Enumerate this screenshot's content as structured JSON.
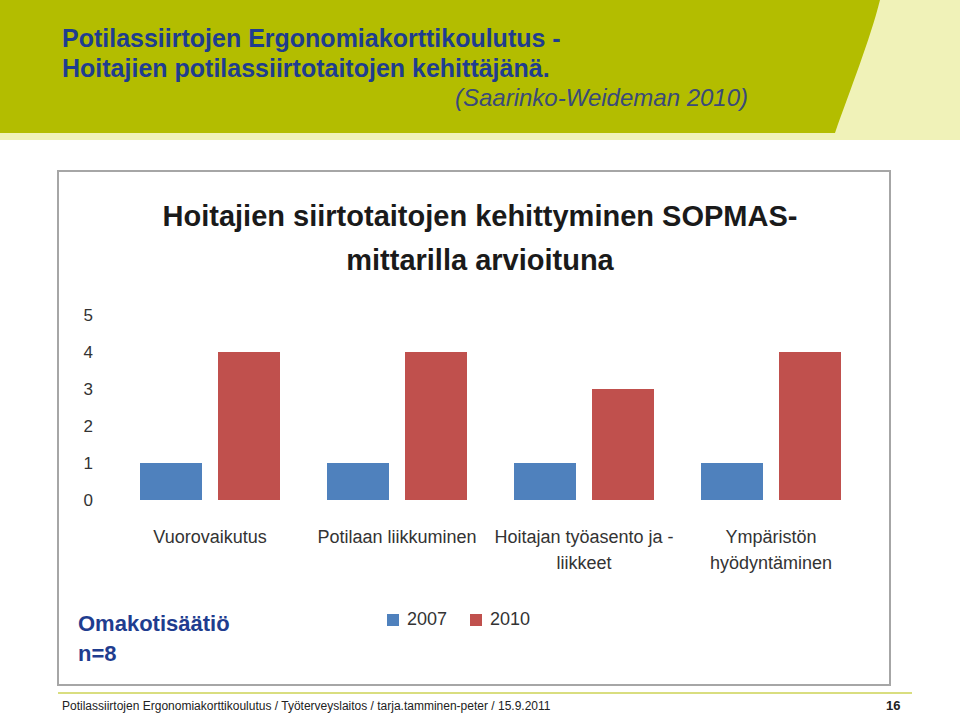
{
  "slide": {
    "title_lines": [
      "Potilassiirtojen Ergonomiakorttikoulutus -",
      "Hoitajien potilassiirtotaitojen kehittäjänä."
    ],
    "citation": "(Saarinko-Weideman 2010)",
    "note_lines": [
      "Omakotisäätiö",
      "n=8"
    ],
    "footer": "Potilassiirtojen Ergonomiakorttikoulutus / Työterveyslaitos / tarja.tamminen-peter / 15.9.2011",
    "page_number": "16"
  },
  "chart_data": {
    "type": "bar",
    "title": "Hoitajien siirtotaitojen kehittyminen SOPMAS-mittarilla arvioituna",
    "categories": [
      "Vuorovaikutus",
      "Potilaan liikkuminen",
      "Hoitajan työasento ja -liikkeet",
      "Ympäristön hyödyntäminen"
    ],
    "series": [
      {
        "name": "2007",
        "color": "#4f81bd",
        "values": [
          1,
          1,
          1,
          1
        ]
      },
      {
        "name": "2010",
        "color": "#c0504d",
        "values": [
          4,
          4,
          3,
          4
        ]
      }
    ],
    "ylim": [
      0,
      5
    ],
    "yticks": [
      0,
      1,
      2,
      3,
      4,
      5
    ],
    "grid": false,
    "legend": "bottom"
  }
}
